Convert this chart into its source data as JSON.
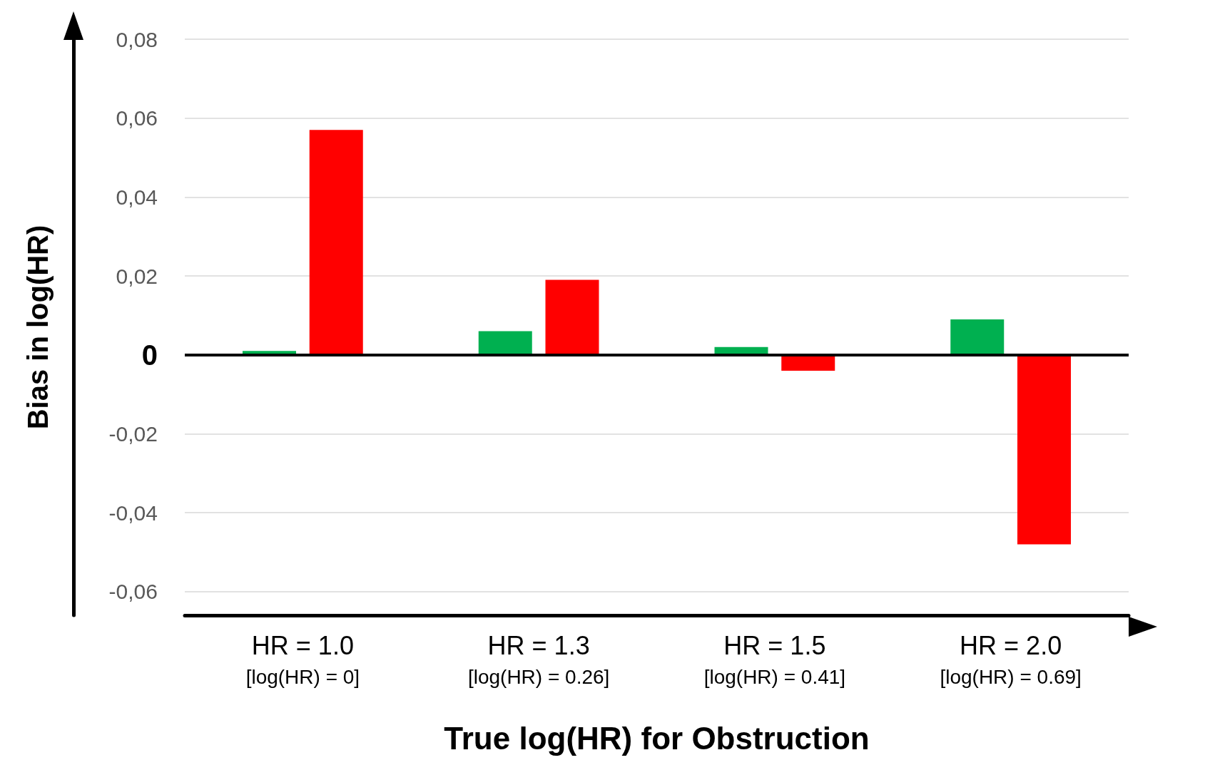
{
  "chart_data": {
    "type": "bar",
    "xlabel": "True log(HR) for Obstruction",
    "ylabel": "Bias in log(HR)",
    "categories": [
      "HR = 1.0\n[log(HR) = 0]",
      "HR = 1.3\n[log(HR) = 0.26]",
      "HR = 1.5\n[log(HR) = 0.41]",
      "HR = 2.0\n[log(HR) = 0.69]"
    ],
    "series": [
      {
        "color": "#00b050",
        "values": [
          0.001,
          0.006,
          0.002,
          0.009
        ]
      },
      {
        "color": "#ff0000",
        "values": [
          0.057,
          0.019,
          -0.004,
          -0.048
        ]
      }
    ],
    "ylim": [
      -0.066,
      0.08
    ],
    "yticks": [
      {
        "value": -0.06,
        "label": "-0,06"
      },
      {
        "value": -0.04,
        "label": "-0,04"
      },
      {
        "value": -0.02,
        "label": "-0,02"
      },
      {
        "value": 0,
        "label": "0"
      },
      {
        "value": 0.02,
        "label": "0,02"
      },
      {
        "value": 0.04,
        "label": "0,04"
      },
      {
        "value": 0.06,
        "label": "0,06"
      },
      {
        "value": 0.08,
        "label": "0,08"
      }
    ],
    "ref_lines": [
      {
        "axis": "y",
        "value": 0,
        "color": "#000000"
      }
    ],
    "grid": "y"
  }
}
